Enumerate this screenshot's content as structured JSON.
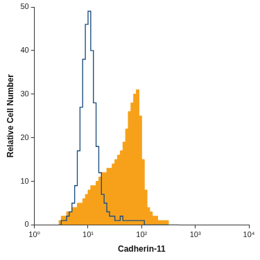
{
  "chart_data": {
    "type": "histogram",
    "x_label": "Cadherin-11",
    "y_label": "Relative Cell Number",
    "log": "x",
    "grid": false,
    "xlim": [
      1,
      10000
    ],
    "xticks": [
      {
        "value": 1,
        "label": "10⁰"
      },
      {
        "value": 10,
        "label": "10¹"
      },
      {
        "value": 100,
        "label": "10²"
      },
      {
        "value": 1000,
        "label": "10³"
      },
      {
        "value": 10000,
        "label": "10⁴"
      }
    ],
    "ylim": [
      0,
      50
    ],
    "yticks": [
      0,
      10,
      20,
      30,
      40,
      50
    ],
    "bins": [
      2.818,
      3.162,
      3.548,
      3.981,
      4.467,
      5.012,
      5.623,
      6.31,
      7.079,
      7.943,
      8.913,
      10,
      11.22,
      12.59,
      14.13,
      15.85,
      17.78,
      19.95,
      22.39,
      25.12,
      28.18,
      31.62,
      35.48,
      39.81,
      44.67,
      50.12,
      56.23,
      63.1,
      70.79,
      79.43,
      89.13,
      100,
      112.2,
      125.9,
      141.3,
      158.5,
      177.8,
      199.5,
      223.9,
      251.2,
      281.8,
      316.2,
      354.8,
      398.1,
      446.7,
      501.2
    ],
    "series": [
      {
        "type": "area",
        "color": "#f7a11a",
        "values": [
          1,
          1,
          2,
          2,
          3,
          3,
          4,
          4,
          5,
          5,
          6,
          7,
          8,
          9,
          9,
          10,
          11,
          12,
          12,
          13,
          13,
          14,
          15,
          16,
          17,
          19,
          22,
          26,
          28,
          30,
          31,
          25,
          15,
          8,
          4,
          3,
          2,
          2,
          1,
          1,
          1,
          1,
          0,
          0,
          0
        ]
      },
      {
        "type": "line",
        "color": "#1f5080",
        "values": [
          0,
          0,
          1,
          1,
          2,
          3,
          5,
          9,
          17,
          27,
          38,
          46,
          49,
          40,
          28,
          18,
          12,
          7,
          5,
          3,
          2,
          2,
          1,
          1,
          2,
          1,
          1,
          1,
          1,
          1,
          1,
          1,
          1,
          0,
          0,
          0,
          0,
          0,
          0,
          0,
          0,
          0,
          0,
          0,
          0
        ]
      }
    ]
  }
}
